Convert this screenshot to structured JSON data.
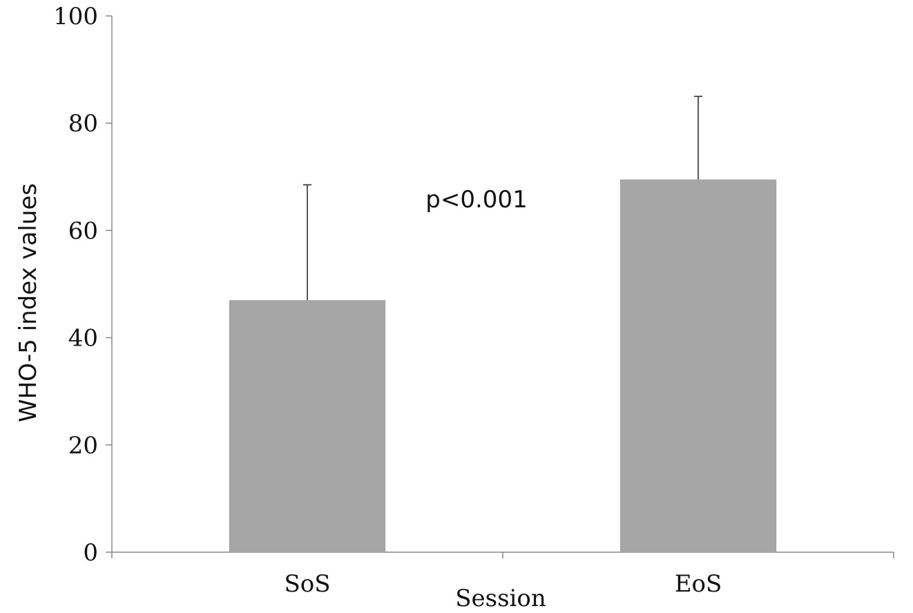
{
  "chart_data": {
    "type": "bar",
    "categories": [
      "SoS",
      "EoS"
    ],
    "values": [
      47,
      69.5
    ],
    "error_bars": [
      21.5,
      15.5
    ],
    "xlabel": "Session",
    "ylabel": "WHO-5 index values",
    "ylim": [
      0,
      100
    ],
    "yticks": [
      0,
      20,
      40,
      60,
      80,
      100
    ],
    "annotation": "p<0.001",
    "bar_color": "#a6a6a6",
    "axis_color": "#888888",
    "grid": false,
    "legend": "none"
  }
}
